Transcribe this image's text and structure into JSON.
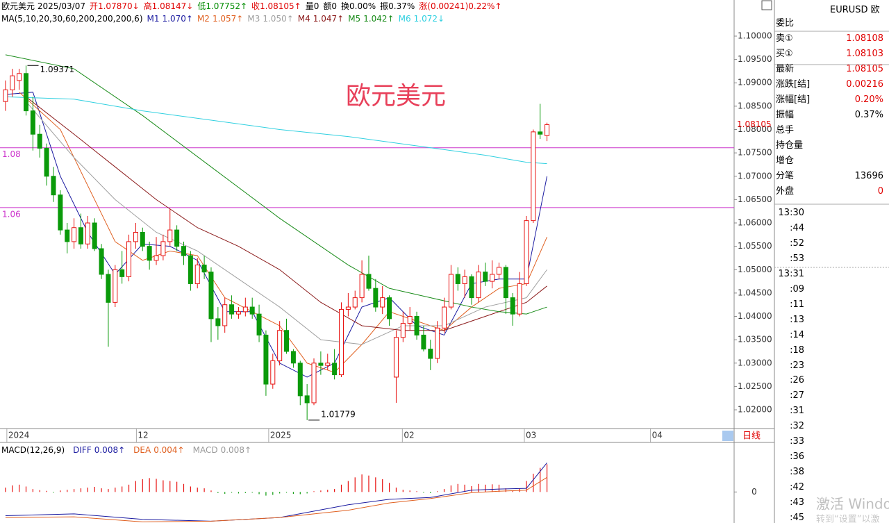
{
  "header": {
    "items": [
      {
        "text": "欧元美元 2025/03/07",
        "color": "#000000"
      },
      {
        "text": "开1.07870↓",
        "color": "#e00000"
      },
      {
        "text": "高1.08147↓",
        "color": "#e00000"
      },
      {
        "text": "低1.07752↑",
        "color": "#008c00"
      },
      {
        "text": "收1.08105↑",
        "color": "#e00000"
      },
      {
        "text": "量0",
        "color": "#000000"
      },
      {
        "text": "额0",
        "color": "#000000"
      },
      {
        "text": "换0.00%",
        "color": "#000000"
      },
      {
        "text": "振0.37%",
        "color": "#000000"
      },
      {
        "text": "涨(0.00241)0.22%↑",
        "color": "#e00000"
      }
    ]
  },
  "chart_data": [
    {
      "type": "candlestick",
      "title": "欧元美元",
      "ma_title": "MA(5,10,20,30,60,200,200,200,6)",
      "up_color": "#e8110f",
      "down_color": "#0a9a0a",
      "xlim": [
        -0.8,
        106.3
      ],
      "ylim": [
        1.01599,
        1.10773
      ],
      "xticks": [
        {
          "value": 0.2,
          "label": "2024"
        },
        {
          "value": 19.1,
          "label": "12"
        },
        {
          "value": 38.4,
          "label": "2025"
        },
        {
          "value": 57.9,
          "label": "02"
        },
        {
          "value": 75.7,
          "label": "03"
        },
        {
          "value": 94.1,
          "label": "04"
        }
      ],
      "yticks": [
        {
          "value": 1.02,
          "label": "1.02000"
        },
        {
          "value": 1.025,
          "label": "1.02500"
        },
        {
          "value": 1.03,
          "label": "1.03000"
        },
        {
          "value": 1.035,
          "label": "1.03500"
        },
        {
          "value": 1.04,
          "label": "1.04000"
        },
        {
          "value": 1.045,
          "label": "1.04500"
        },
        {
          "value": 1.05,
          "label": "1.05000"
        },
        {
          "value": 1.055,
          "label": "1.05500"
        },
        {
          "value": 1.06,
          "label": "1.06000"
        },
        {
          "value": 1.065,
          "label": "1.06500"
        },
        {
          "value": 1.07,
          "label": "1.07000"
        },
        {
          "value": 1.075,
          "label": "1.07500"
        },
        {
          "value": 1.08,
          "label": "1.08000"
        },
        {
          "value": 1.085,
          "label": "1.08500"
        },
        {
          "value": 1.09,
          "label": "1.09000"
        },
        {
          "value": 1.095,
          "label": "1.09500"
        },
        {
          "value": 1.1,
          "label": "1.10000"
        }
      ],
      "period": "日线",
      "last_price": 1.08105,
      "last_color": "#e00000",
      "hline_color": "#cc33cc",
      "hlines": [
        {
          "value": 1.0761,
          "label": "1.08"
        },
        {
          "value": 1.0633,
          "label": "1.06"
        }
      ],
      "annotations": [
        {
          "x": 3,
          "value": 1.09371
        },
        {
          "x": 44,
          "value": 1.01779
        }
      ],
      "open": [
        1.086,
        1.0885,
        1.0905,
        1.092,
        1.084,
        1.079,
        1.076,
        1.07,
        1.066,
        1.0585,
        1.056,
        1.059,
        1.0555,
        1.06,
        1.0545,
        1.049,
        1.043,
        1.05,
        1.0485,
        1.056,
        1.058,
        1.055,
        1.052,
        1.053,
        1.056,
        1.0585,
        1.055,
        1.053,
        1.047,
        1.051,
        1.0495,
        1.0395,
        1.038,
        1.0425,
        1.0405,
        1.041,
        1.042,
        1.0405,
        1.036,
        1.0255,
        1.0305,
        1.037,
        1.0325,
        1.03,
        1.023,
        1.0215,
        1.03,
        1.0295,
        1.03,
        1.0275,
        1.0415,
        1.042,
        1.044,
        1.049,
        1.046,
        1.042,
        1.044,
        1.027,
        1.0355,
        1.0385,
        1.04,
        1.036,
        1.033,
        1.031,
        1.0375,
        1.042,
        1.049,
        1.047,
        1.0485,
        1.044,
        1.0495,
        1.0475,
        1.049,
        1.0505,
        1.044,
        1.0405,
        1.047,
        1.0605,
        1.0795,
        1.0787
      ],
      "high": [
        1.0905,
        1.093,
        1.093,
        1.09371,
        1.087,
        1.081,
        1.077,
        1.072,
        1.067,
        1.06,
        1.061,
        1.062,
        1.0615,
        1.061,
        1.0555,
        1.05,
        1.051,
        1.054,
        1.0575,
        1.06,
        1.059,
        1.056,
        1.057,
        1.0575,
        1.063,
        1.0595,
        1.056,
        1.054,
        1.0525,
        1.053,
        1.0505,
        1.042,
        1.044,
        1.0445,
        1.042,
        1.044,
        1.044,
        1.0425,
        1.037,
        1.032,
        1.039,
        1.0395,
        1.033,
        1.0305,
        1.0255,
        1.031,
        1.0325,
        1.032,
        1.033,
        1.043,
        1.045,
        1.0455,
        1.052,
        1.053,
        1.048,
        1.0465,
        1.0445,
        1.037,
        1.041,
        1.042,
        1.041,
        1.038,
        1.035,
        1.039,
        1.044,
        1.051,
        1.0505,
        1.05,
        1.049,
        1.051,
        1.0515,
        1.052,
        1.0515,
        1.051,
        1.045,
        1.0495,
        1.0615,
        1.08,
        1.0855,
        1.08147
      ],
      "low": [
        1.084,
        1.087,
        1.0885,
        1.083,
        1.0755,
        1.074,
        1.068,
        1.0645,
        1.0575,
        1.0535,
        1.0545,
        1.0545,
        1.0545,
        1.054,
        1.048,
        1.0335,
        1.042,
        1.047,
        1.0475,
        1.0545,
        1.054,
        1.05,
        1.051,
        1.052,
        1.055,
        1.054,
        1.051,
        1.0455,
        1.046,
        1.048,
        1.0345,
        1.035,
        1.0365,
        1.0395,
        1.0395,
        1.04,
        1.0395,
        1.0345,
        1.023,
        1.0245,
        1.0295,
        1.032,
        1.029,
        1.021,
        1.01779,
        1.021,
        1.0275,
        1.0285,
        1.0265,
        1.027,
        1.04,
        1.0415,
        1.043,
        1.0455,
        1.041,
        1.0405,
        1.038,
        1.0215,
        1.0345,
        1.037,
        1.035,
        1.0325,
        1.0285,
        1.03,
        1.0365,
        1.0415,
        1.0455,
        1.044,
        1.0425,
        1.043,
        1.0465,
        1.046,
        1.048,
        1.0405,
        1.038,
        1.04,
        1.0465,
        1.06,
        1.078,
        1.07752
      ],
      "close": [
        1.0885,
        1.0915,
        1.092,
        1.084,
        1.079,
        1.076,
        1.07,
        1.066,
        1.0585,
        1.056,
        1.059,
        1.0555,
        1.06,
        1.0545,
        1.049,
        1.043,
        1.05,
        1.0485,
        1.056,
        1.058,
        1.055,
        1.052,
        1.053,
        1.056,
        1.0585,
        1.055,
        1.053,
        1.047,
        1.051,
        1.0495,
        1.0395,
        1.038,
        1.0425,
        1.0405,
        1.041,
        1.042,
        1.0405,
        1.036,
        1.0255,
        1.0305,
        1.037,
        1.0325,
        1.03,
        1.023,
        1.0215,
        1.03,
        1.0295,
        1.03,
        1.0275,
        1.0415,
        1.042,
        1.044,
        1.049,
        1.046,
        1.042,
        1.044,
        1.0395,
        1.0355,
        1.0385,
        1.04,
        1.036,
        1.033,
        1.031,
        1.0375,
        1.042,
        1.049,
        1.047,
        1.0485,
        1.044,
        1.0495,
        1.0475,
        1.049,
        1.0505,
        1.044,
        1.0405,
        1.047,
        1.0605,
        1.0795,
        1.079,
        1.08105
      ],
      "series": [
        {
          "name": "M1",
          "label": "1.070↑",
          "color": "#1a1aa0",
          "x": [
            0,
            4,
            8,
            12,
            16,
            20,
            24,
            28,
            32,
            36,
            40,
            44,
            48,
            52,
            56,
            60,
            64,
            68,
            72,
            76,
            79
          ],
          "values": [
            1.0875,
            1.088,
            1.07,
            1.058,
            1.049,
            1.0555,
            1.055,
            1.052,
            1.041,
            1.041,
            1.03,
            1.027,
            1.03,
            1.042,
            1.044,
            1.038,
            1.036,
            1.047,
            1.048,
            1.048,
            1.07
          ]
        },
        {
          "name": "M2",
          "label": "1.057↑",
          "color": "#e06020",
          "x": [
            2,
            8,
            12,
            16,
            20,
            24,
            28,
            32,
            36,
            40,
            44,
            48,
            52,
            56,
            60,
            64,
            68,
            72,
            76,
            79
          ],
          "values": [
            1.088,
            1.08,
            1.068,
            1.056,
            1.052,
            1.054,
            1.053,
            1.044,
            1.041,
            1.038,
            1.03,
            1.028,
            1.034,
            1.041,
            1.039,
            1.037,
            1.042,
            1.046,
            1.047,
            1.057
          ]
        },
        {
          "name": "M3",
          "label": "1.050↑",
          "color": "#a0a0a0",
          "x": [
            3,
            10,
            16,
            22,
            28,
            34,
            40,
            46,
            52,
            58,
            64,
            70,
            76,
            79
          ],
          "values": [
            1.086,
            1.074,
            1.065,
            1.058,
            1.054,
            1.048,
            1.042,
            1.035,
            1.034,
            1.038,
            1.038,
            1.042,
            1.044,
            1.05
          ]
        },
        {
          "name": "M4",
          "label": "1.047↑",
          "color": "#8b1a1a",
          "x": [
            3,
            10,
            16,
            22,
            28,
            34,
            40,
            46,
            52,
            58,
            64,
            70,
            76,
            79
          ],
          "values": [
            1.087,
            1.079,
            1.072,
            1.065,
            1.059,
            1.055,
            1.05,
            1.043,
            1.038,
            1.037,
            1.037,
            1.04,
            1.043,
            1.0465
          ]
        },
        {
          "name": "M5",
          "label": "1.042↑",
          "color": "#1a8c1a",
          "x": [
            0,
            10,
            20,
            30,
            40,
            50,
            56,
            62,
            68,
            72,
            76,
            79
          ],
          "values": [
            1.096,
            1.093,
            1.083,
            1.072,
            1.061,
            1.051,
            1.046,
            1.044,
            1.042,
            1.041,
            1.0405,
            1.042
          ]
        },
        {
          "name": "M6",
          "label": "1.072↓",
          "color": "#30d0e0",
          "x": [
            0,
            10,
            20,
            30,
            40,
            50,
            60,
            70,
            76,
            79
          ],
          "values": [
            1.087,
            1.0865,
            1.084,
            1.082,
            1.08,
            1.0785,
            1.0765,
            1.0745,
            1.073,
            1.0727
          ]
        }
      ]
    },
    {
      "type": "macd",
      "title": "MACD(12,26,9)",
      "xlim": [
        -0.8,
        106.3
      ],
      "ylim": [
        -0.0085,
        0.013
      ],
      "yticks": [
        0
      ],
      "histogram": {
        "name": "MACD",
        "label": "0.008↑",
        "color": "#999999",
        "up_color": "#e8110f",
        "down_color": "#0a9a0a",
        "values": [
          0.0012,
          0.0018,
          0.002,
          0.0015,
          0.0008,
          0.0005,
          0.0003,
          -0.0002,
          0.0004,
          0.0006,
          0.0008,
          0.001,
          0.0012,
          0.0014,
          0.001,
          0.0008,
          0.0012,
          0.0015,
          0.002,
          0.003,
          0.0035,
          0.0038,
          0.0036,
          0.0032,
          0.003,
          0.0028,
          0.0022,
          0.0015,
          0.0012,
          0.001,
          0.0004,
          -0.0003,
          -0.0005,
          -0.0002,
          -0.0004,
          -0.0003,
          -0.0002,
          -0.0006,
          -0.001,
          -0.0008,
          -0.0004,
          -0.0002,
          -0.0005,
          -0.0006,
          -0.0004,
          0.0002,
          0.0004,
          0.0006,
          0.0008,
          0.002,
          0.003,
          0.004,
          0.0048,
          0.0045,
          0.004,
          0.0035,
          0.0025,
          0.0012,
          0.0006,
          0.0004,
          0.0002,
          -0.0002,
          -0.0003,
          0.0002,
          0.0008,
          0.0018,
          0.0022,
          0.002,
          0.0016,
          0.0022,
          0.002,
          0.0021,
          0.002,
          0.001,
          0.0004,
          0.001,
          0.003,
          0.005,
          0.0066,
          0.0076
        ]
      },
      "series": [
        {
          "name": "DIFF",
          "label": "0.008↑",
          "color": "#1a1aa0",
          "x": [
            0,
            10,
            20,
            30,
            40,
            50,
            56,
            62,
            68,
            72,
            76,
            79
          ],
          "values": [
            -0.0065,
            -0.006,
            -0.0075,
            -0.008,
            -0.007,
            -0.0035,
            -0.002,
            -0.0015,
            0.0005,
            0.0008,
            0.001,
            0.008
          ]
        },
        {
          "name": "DEA",
          "label": "0.004↑",
          "color": "#e06020",
          "x": [
            0,
            10,
            20,
            30,
            40,
            50,
            56,
            62,
            68,
            72,
            76,
            79
          ],
          "values": [
            -0.007,
            -0.0068,
            -0.0082,
            -0.008,
            -0.007,
            -0.005,
            -0.003,
            -0.0018,
            -0.0002,
            0.0002,
            0.0005,
            0.004
          ]
        }
      ]
    }
  ],
  "quote_panel": {
    "symbol": "EURUSD 欧",
    "rows": [
      {
        "label": "委比"
      },
      {
        "label": "卖①",
        "value": 1.08108,
        "color": "#e00000"
      },
      {
        "label": "买①",
        "value": 1.08103,
        "color": "#e00000"
      },
      {
        "label": "最新",
        "value": 1.08105,
        "color": "#e00000"
      },
      {
        "label": "涨跌[结]",
        "value": 0.00216,
        "color": "#e00000"
      },
      {
        "label": "涨幅[结]",
        "value": "0.20%",
        "color": "#e00000"
      },
      {
        "label": "振幅",
        "value": "0.37%",
        "color": "#000000"
      },
      {
        "label": "总手"
      },
      {
        "label": "持仓量"
      },
      {
        "label": "增仓"
      },
      {
        "label": "分笔",
        "value": 13696,
        "color": "#000000"
      },
      {
        "label": "外盘",
        "value": 0,
        "color": "#e00000"
      }
    ]
  },
  "time_list": [
    "13:30",
    ":44",
    ":52",
    ":53",
    "13:31",
    ":09",
    ":11",
    ":13",
    ":14",
    ":18",
    ":23",
    ":26",
    ":27",
    ":31",
    ":32",
    ":33",
    ":36",
    ":38",
    ":42",
    ":43",
    ":45"
  ],
  "watermark": {
    "title": "激活 Windo",
    "hint": "转到“设置”以激"
  }
}
